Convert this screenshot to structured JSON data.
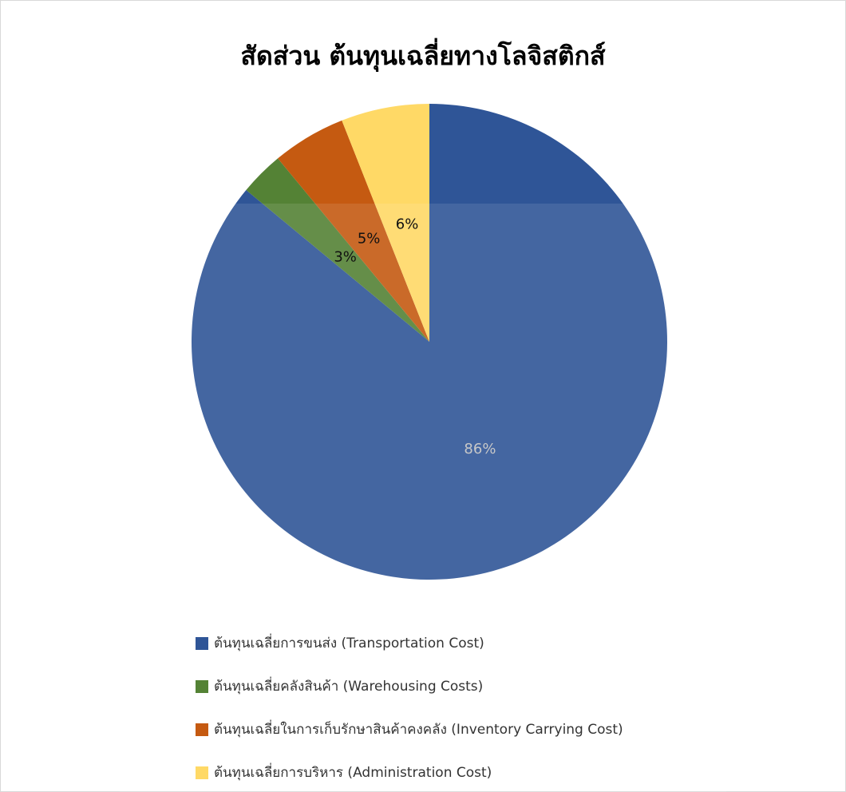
{
  "chart_data": {
    "type": "pie",
    "title": "สัดส่วน ต้นทุนเฉลี่ยทางโลจิสติกส์",
    "categories": [
      " ต้นทุนเฉลี่ยการขนส่ง (Transportation Cost)",
      "ต้นทุนเฉลี่ยคลังสินค้า (Warehousing Costs)",
      "ต้นทุนเฉลี่ยในการเก็บรักษาสินค้าคงคลัง (Inventory Carrying Cost)",
      "ต้นทุนเฉลี่ยการบริหาร (Administration Cost)"
    ],
    "values": [
      86,
      3,
      5,
      6
    ],
    "value_labels": [
      "86%",
      "3%",
      "5%",
      "6%"
    ],
    "colors": [
      "#2f5597",
      "#548235",
      "#c55a11",
      "#ffd966"
    ]
  }
}
